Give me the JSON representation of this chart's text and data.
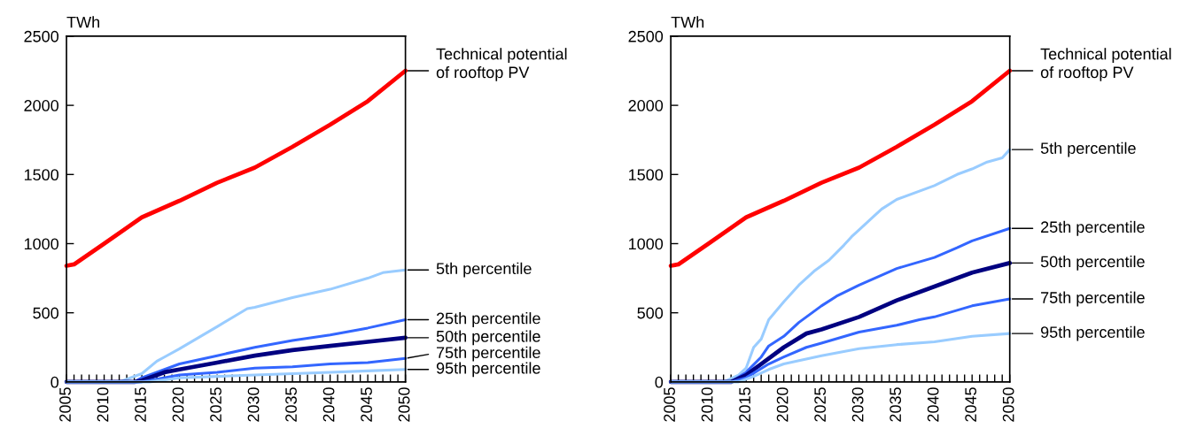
{
  "chart_data": [
    {
      "type": "line",
      "ylabel": "TWh",
      "xlim": [
        2005,
        2050
      ],
      "ylim": [
        0,
        2500
      ],
      "yticks": [
        0,
        500,
        1000,
        1500,
        2000,
        2500
      ],
      "xticks": [
        2005,
        {
          "value": 2006,
          "label": null
        },
        {
          "value": 2007,
          "label": null
        },
        {
          "value": 2008,
          "label": null
        },
        {
          "value": 2009,
          "label": null
        },
        2010,
        {
          "value": 2011,
          "label": null
        },
        {
          "value": 2012,
          "label": null
        },
        {
          "value": 2013,
          "label": null
        },
        {
          "value": 2014,
          "label": null
        },
        2015,
        {
          "value": 2016,
          "label": null
        },
        {
          "value": 2017,
          "label": null
        },
        {
          "value": 2018,
          "label": null
        },
        {
          "value": 2019,
          "label": null
        },
        2020,
        {
          "value": 2021,
          "label": null
        },
        {
          "value": 2022,
          "label": null
        },
        {
          "value": 2023,
          "label": null
        },
        {
          "value": 2024,
          "label": null
        },
        2025,
        {
          "value": 2026,
          "label": null
        },
        {
          "value": 2027,
          "label": null
        },
        {
          "value": 2028,
          "label": null
        },
        {
          "value": 2029,
          "label": null
        },
        2030,
        {
          "value": 2031,
          "label": null
        },
        {
          "value": 2032,
          "label": null
        },
        {
          "value": 2033,
          "label": null
        },
        {
          "value": 2034,
          "label": null
        },
        2035,
        {
          "value": 2036,
          "label": null
        },
        {
          "value": 2037,
          "label": null
        },
        {
          "value": 2038,
          "label": null
        },
        {
          "value": 2039,
          "label": null
        },
        2040,
        {
          "value": 2041,
          "label": null
        },
        {
          "value": 2042,
          "label": null
        },
        {
          "value": 2043,
          "label": null
        },
        {
          "value": 2044,
          "label": null
        },
        2045,
        {
          "value": 2046,
          "label": null
        },
        {
          "value": 2047,
          "label": null
        },
        {
          "value": 2048,
          "label": null
        },
        {
          "value": 2049,
          "label": null
        },
        2050
      ],
      "grid": false,
      "legend": false,
      "series": [
        {
          "name": "Technical potential\nof rooftop PV",
          "color": "#ff0000",
          "x": [
            2005,
            2006,
            2010,
            2015,
            2020,
            2025,
            2030,
            2035,
            2040,
            2045,
            2050
          ],
          "values": [
            840,
            850,
            1000,
            1190,
            1310,
            1440,
            1550,
            1700,
            1860,
            2030,
            2250
          ]
        },
        {
          "name": "5th percentile",
          "color": "#99ccff",
          "x": [
            2005,
            2012,
            2015,
            2017,
            2018,
            2020,
            2025,
            2029,
            2030,
            2035,
            2040,
            2045,
            2047,
            2050
          ],
          "values": [
            0,
            0,
            60,
            150,
            180,
            240,
            400,
            530,
            540,
            610,
            670,
            750,
            790,
            810
          ]
        },
        {
          "name": "25th percentile",
          "color": "#3366ff",
          "x": [
            2005,
            2014,
            2015,
            2020,
            2025,
            2030,
            2035,
            2040,
            2045,
            2050
          ],
          "values": [
            0,
            0,
            30,
            130,
            190,
            250,
            300,
            340,
            390,
            450
          ]
        },
        {
          "name": "50th percentile",
          "color": "#000080",
          "x": [
            2005,
            2014,
            2015,
            2018,
            2020,
            2025,
            2030,
            2035,
            2040,
            2045,
            2050
          ],
          "values": [
            0,
            0,
            10,
            70,
            90,
            140,
            190,
            230,
            260,
            290,
            320
          ]
        },
        {
          "name": "75th percentile",
          "color": "#3366ff",
          "x": [
            2005,
            2015,
            2016,
            2020,
            2025,
            2030,
            2035,
            2040,
            2045,
            2050
          ],
          "values": [
            0,
            0,
            10,
            50,
            70,
            100,
            110,
            130,
            140,
            170
          ]
        },
        {
          "name": "95th percentile",
          "color": "#99ccff",
          "x": [
            2005,
            2016,
            2020,
            2025,
            2030,
            2035,
            2040,
            2045,
            2050
          ],
          "values": [
            0,
            0,
            30,
            40,
            50,
            60,
            70,
            80,
            90
          ]
        }
      ]
    },
    {
      "type": "line",
      "ylabel": "TWh",
      "xlim": [
        2005,
        2050
      ],
      "ylim": [
        0,
        2500
      ],
      "yticks": [
        0,
        500,
        1000,
        1500,
        2000,
        2500
      ],
      "xticks": [
        2005,
        {
          "value": 2006,
          "label": null
        },
        {
          "value": 2007,
          "label": null
        },
        {
          "value": 2008,
          "label": null
        },
        {
          "value": 2009,
          "label": null
        },
        2010,
        {
          "value": 2011,
          "label": null
        },
        {
          "value": 2012,
          "label": null
        },
        {
          "value": 2013,
          "label": null
        },
        {
          "value": 2014,
          "label": null
        },
        2015,
        {
          "value": 2016,
          "label": null
        },
        {
          "value": 2017,
          "label": null
        },
        {
          "value": 2018,
          "label": null
        },
        {
          "value": 2019,
          "label": null
        },
        2020,
        {
          "value": 2021,
          "label": null
        },
        {
          "value": 2022,
          "label": null
        },
        {
          "value": 2023,
          "label": null
        },
        {
          "value": 2024,
          "label": null
        },
        2025,
        {
          "value": 2026,
          "label": null
        },
        {
          "value": 2027,
          "label": null
        },
        {
          "value": 2028,
          "label": null
        },
        {
          "value": 2029,
          "label": null
        },
        2030,
        {
          "value": 2031,
          "label": null
        },
        {
          "value": 2032,
          "label": null
        },
        {
          "value": 2033,
          "label": null
        },
        {
          "value": 2034,
          "label": null
        },
        2035,
        {
          "value": 2036,
          "label": null
        },
        {
          "value": 2037,
          "label": null
        },
        {
          "value": 2038,
          "label": null
        },
        {
          "value": 2039,
          "label": null
        },
        2040,
        {
          "value": 2041,
          "label": null
        },
        {
          "value": 2042,
          "label": null
        },
        {
          "value": 2043,
          "label": null
        },
        {
          "value": 2044,
          "label": null
        },
        2045,
        {
          "value": 2046,
          "label": null
        },
        {
          "value": 2047,
          "label": null
        },
        {
          "value": 2048,
          "label": null
        },
        {
          "value": 2049,
          "label": null
        },
        2050
      ],
      "grid": false,
      "legend": false,
      "series": [
        {
          "name": "Technical potential\nof rooftop PV",
          "color": "#ff0000",
          "x": [
            2005,
            2006,
            2010,
            2015,
            2020,
            2025,
            2030,
            2035,
            2040,
            2045,
            2050
          ],
          "values": [
            840,
            850,
            1000,
            1190,
            1310,
            1440,
            1550,
            1700,
            1860,
            2030,
            2250
          ]
        },
        {
          "name": "5th percentile",
          "color": "#99ccff",
          "x": [
            2005,
            2012,
            2014,
            2015,
            2016,
            2017,
            2018,
            2020,
            2022,
            2024,
            2026,
            2028,
            2029,
            2030,
            2032,
            2033,
            2035,
            2040,
            2043,
            2045,
            2047,
            2049,
            2050
          ],
          "values": [
            0,
            0,
            50,
            100,
            250,
            310,
            450,
            580,
            700,
            800,
            880,
            990,
            1050,
            1100,
            1200,
            1250,
            1320,
            1420,
            1500,
            1540,
            1590,
            1620,
            1680
          ]
        },
        {
          "name": "25th percentile",
          "color": "#3366ff",
          "x": [
            2005,
            2013,
            2015,
            2017,
            2018,
            2020,
            2022,
            2025,
            2027,
            2030,
            2035,
            2040,
            2043,
            2045,
            2050
          ],
          "values": [
            0,
            0,
            70,
            180,
            260,
            330,
            430,
            550,
            620,
            700,
            820,
            900,
            970,
            1020,
            1110
          ]
        },
        {
          "name": "50th percentile",
          "color": "#000080",
          "x": [
            2005,
            2013,
            2015,
            2017,
            2020,
            2023,
            2025,
            2030,
            2035,
            2040,
            2043,
            2045,
            2050
          ],
          "values": [
            0,
            0,
            50,
            130,
            250,
            350,
            380,
            470,
            590,
            690,
            750,
            790,
            860
          ]
        },
        {
          "name": "75th percentile",
          "color": "#3366ff",
          "x": [
            2005,
            2013,
            2015,
            2018,
            2020,
            2023,
            2025,
            2030,
            2035,
            2038,
            2040,
            2045,
            2050
          ],
          "values": [
            0,
            0,
            30,
            130,
            180,
            250,
            280,
            360,
            410,
            450,
            470,
            550,
            600
          ]
        },
        {
          "name": "95th percentile",
          "color": "#99ccff",
          "x": [
            2005,
            2014,
            2016,
            2018,
            2020,
            2025,
            2030,
            2035,
            2040,
            2045,
            2050
          ],
          "values": [
            0,
            0,
            40,
            90,
            130,
            190,
            240,
            270,
            290,
            330,
            350
          ]
        }
      ]
    }
  ]
}
